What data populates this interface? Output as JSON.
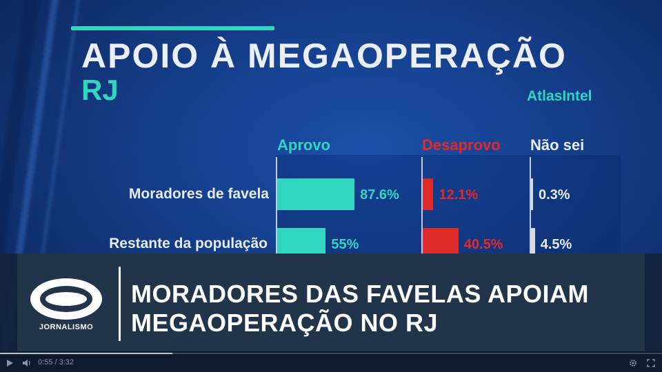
{
  "graphic": {
    "title": "APOIO À MEGAOPERAÇÃO",
    "subtitle": "RJ",
    "source": "AtlasIntel",
    "colors": {
      "aprovo": "#2fd6c0",
      "desaprovo": "#e02a2a",
      "nao_sei": "#d8dbe0"
    }
  },
  "chart_data": {
    "type": "bar",
    "title": "APOIO À MEGAOPERAÇÃO",
    "subtitle": "RJ",
    "categories": [
      "Moradores de favela",
      "Restante da população"
    ],
    "series": [
      {
        "name": "Aprovo",
        "values": [
          87.6,
          55
        ],
        "labels": [
          "87.6%",
          "55%"
        ]
      },
      {
        "name": "Desaprovo",
        "values": [
          12.1,
          40.5
        ],
        "labels": [
          "12.1%",
          "40.5%"
        ]
      },
      {
        "name": "Não sei",
        "values": [
          0.3,
          4.5
        ],
        "labels": [
          "0.3%",
          "4.5%"
        ]
      }
    ],
    "unit": "%"
  },
  "broadcast": {
    "logo_text": "JORNALISMO",
    "headline_line1": "MORADORES DAS FAVELAS APOIAM",
    "headline_line2": "MEGAOPERAÇÃO NO RJ"
  },
  "player": {
    "time": "0:55 / 3:32",
    "progress": 0.26,
    "play_icon": "play-icon",
    "volume_icon": "volume-icon",
    "settings_icon": "gear-icon",
    "fullscreen_icon": "fullscreen-icon"
  }
}
